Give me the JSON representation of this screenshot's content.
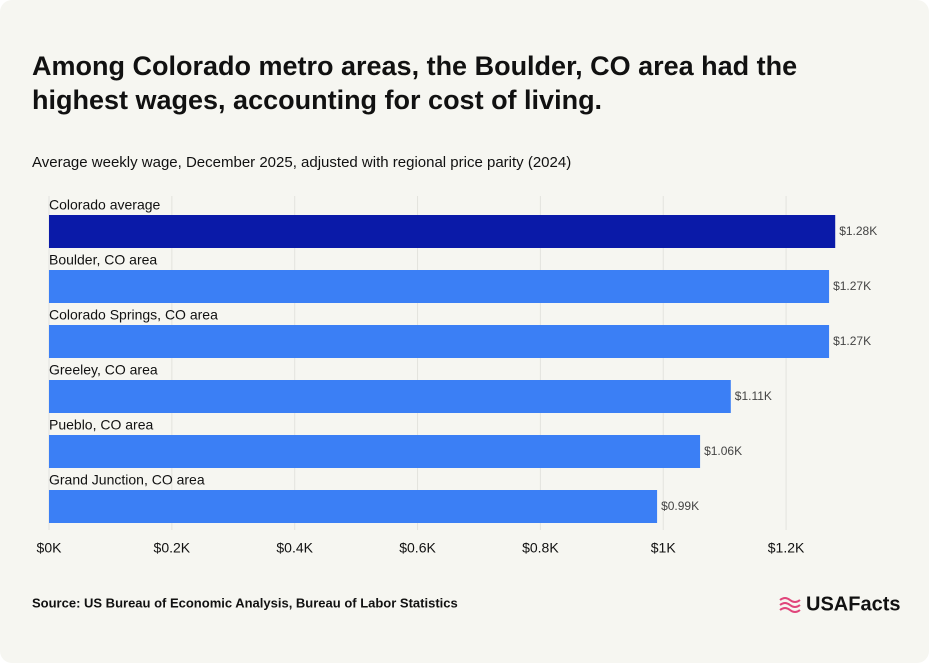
{
  "chart_data": {
    "type": "hbar",
    "title": "Among Colorado metro areas, the Boulder, CO area had the highest wages, accounting for cost of living.",
    "subtitle": "Average weekly wage, December 2025, adjusted with regional price parity (2024)",
    "categories": [
      "Colorado average",
      "Boulder, CO area",
      "Colorado Springs, CO area",
      "Greeley, CO area",
      "Pueblo, CO area",
      "Grand Junction, CO area"
    ],
    "values": [
      1280,
      1270,
      1270,
      1110,
      1060,
      990
    ],
    "value_labels": [
      "$1.28K",
      "$1.27K",
      "$1.27K",
      "$1.11K",
      "$1.06K",
      "$0.99K"
    ],
    "colors": [
      "#0a1aa8",
      "#3b7ff5",
      "#3b7ff5",
      "#3b7ff5",
      "#3b7ff5",
      "#3b7ff5"
    ],
    "xlim": [
      0,
      1300
    ],
    "xticks": [
      {
        "value": 0,
        "label": "$0K"
      },
      {
        "value": 200,
        "label": "$0.2K"
      },
      {
        "value": 400,
        "label": "$0.4K"
      },
      {
        "value": 600,
        "label": "$0.6K"
      },
      {
        "value": 800,
        "label": "$0.8K"
      },
      {
        "value": 1000,
        "label": "$1K"
      },
      {
        "value": 1200,
        "label": "$1.2K"
      }
    ],
    "grid": true,
    "source": "Source: US Bureau of Economic Analysis, Bureau of Labor Statistics",
    "logo": "USAFacts"
  }
}
